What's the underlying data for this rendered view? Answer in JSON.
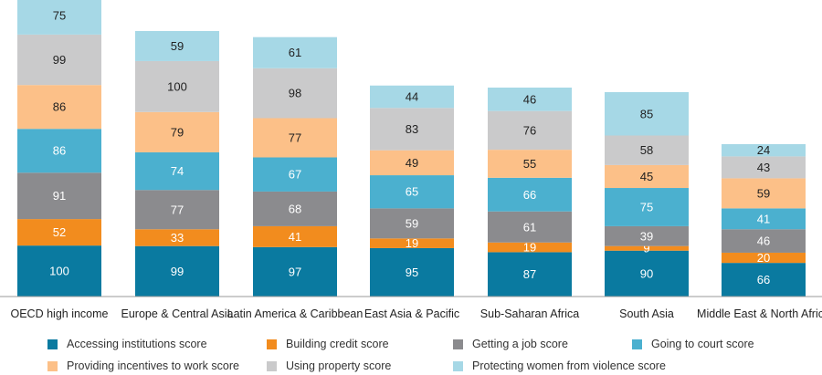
{
  "chart_data": {
    "type": "bar",
    "stacked": true,
    "categories": [
      "OECD high income",
      "Europe & Central Asia",
      "Latin America & Caribbean",
      "East Asia & Pacific",
      "Sub-Saharan Africa",
      "South Asia",
      "Middle East & North Africa"
    ],
    "series": [
      {
        "name": "Accessing institutions score",
        "color": "#0a7aa0",
        "values": [
          100,
          99,
          97,
          95,
          87,
          90,
          66
        ]
      },
      {
        "name": "Building credit score",
        "color": "#f28c1e",
        "values": [
          52,
          33,
          41,
          19,
          19,
          9,
          20
        ]
      },
      {
        "name": "Getting a job score",
        "color": "#8b8b8e",
        "values": [
          91,
          77,
          68,
          59,
          61,
          39,
          46
        ]
      },
      {
        "name": "Going to court score",
        "color": "#4bb0cf",
        "values": [
          86,
          74,
          67,
          65,
          66,
          75,
          41
        ]
      },
      {
        "name": "Providing incentives to work score",
        "color": "#fcc088",
        "values": [
          86,
          79,
          77,
          49,
          55,
          45,
          59
        ]
      },
      {
        "name": "Using property score",
        "color": "#cacacb",
        "values": [
          99,
          100,
          98,
          83,
          76,
          58,
          43
        ]
      },
      {
        "name": "Protecting women from violence score",
        "color": "#a6d8e6",
        "values": [
          75,
          59,
          61,
          44,
          46,
          85,
          24
        ]
      }
    ],
    "title": "",
    "xlabel": "",
    "ylabel": "",
    "ylim": [
      0,
      589
    ],
    "grid": false,
    "legend_position": "bottom"
  }
}
